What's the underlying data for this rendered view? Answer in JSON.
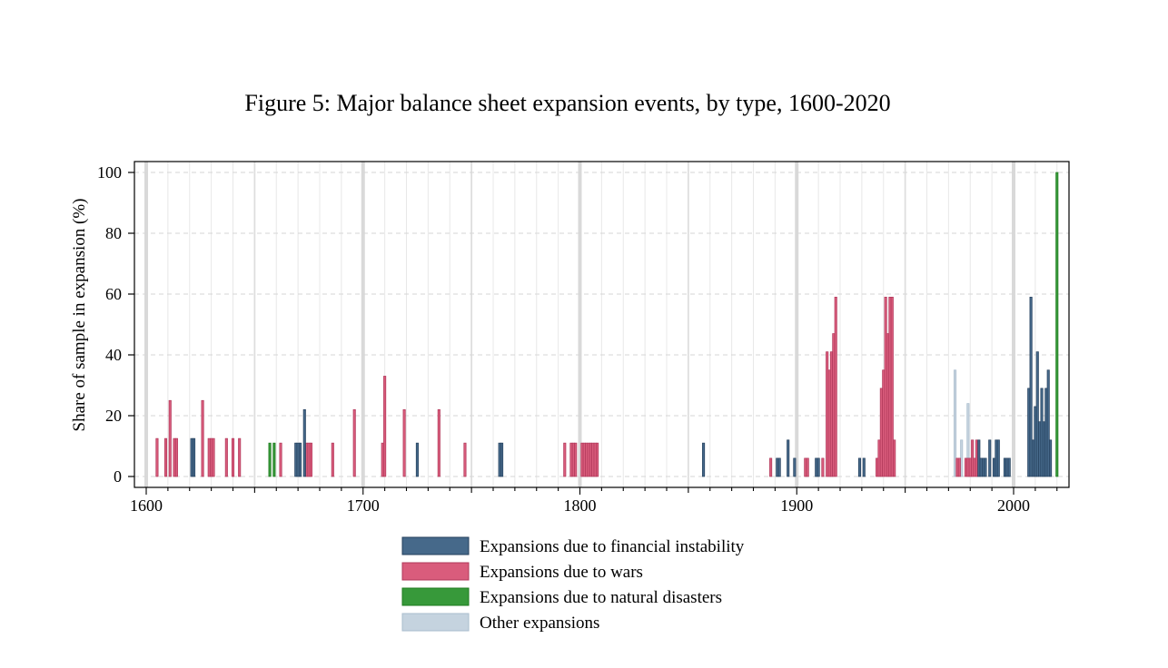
{
  "chart_data": {
    "type": "bar",
    "title": "Figure 5: Major balance sheet expansion events, by type, 1600-2020",
    "xlabel": "",
    "ylabel": "Share of sample in expansion (%)",
    "xlim": [
      1600,
      2025
    ],
    "ylim": [
      0,
      100
    ],
    "xticks": [
      1600,
      1700,
      1800,
      1900,
      2000
    ],
    "yticks": [
      0,
      20,
      40,
      60,
      80,
      100
    ],
    "grid": true,
    "legend_position": "bottom",
    "series": [
      {
        "name": "Expansions due to financial instability",
        "color": "#46698a",
        "edge": "#243f5c",
        "points": [
          [
            1621,
            12.5
          ],
          [
            1622,
            12.5
          ],
          [
            1669,
            11
          ],
          [
            1670,
            11
          ],
          [
            1671,
            11
          ],
          [
            1673,
            22
          ],
          [
            1725,
            11
          ],
          [
            1763,
            11
          ],
          [
            1764,
            11
          ],
          [
            1857,
            11
          ],
          [
            1891,
            6
          ],
          [
            1892,
            6
          ],
          [
            1896,
            12
          ],
          [
            1899,
            6
          ],
          [
            1909,
            6
          ],
          [
            1910,
            6
          ],
          [
            1929,
            6
          ],
          [
            1931,
            6
          ],
          [
            1984,
            12
          ],
          [
            1985,
            6
          ],
          [
            1986,
            6
          ],
          [
            1987,
            6
          ],
          [
            1989,
            12
          ],
          [
            1991,
            6
          ],
          [
            1992,
            12
          ],
          [
            1993,
            12
          ],
          [
            1996,
            6
          ],
          [
            1997,
            6
          ],
          [
            1998,
            6
          ],
          [
            2007,
            29
          ],
          [
            2008,
            59
          ],
          [
            2009,
            12
          ],
          [
            2010,
            23
          ],
          [
            2011,
            41
          ],
          [
            2012,
            18
          ],
          [
            2013,
            29
          ],
          [
            2014,
            18
          ],
          [
            2015,
            29
          ],
          [
            2016,
            35
          ],
          [
            2017,
            12
          ]
        ]
      },
      {
        "name": "Expansions due to wars",
        "color": "#d95c7c",
        "edge": "#b0385a",
        "points": [
          [
            1605,
            12.5
          ],
          [
            1609,
            12.5
          ],
          [
            1611,
            25
          ],
          [
            1613,
            12.5
          ],
          [
            1614,
            12.5
          ],
          [
            1626,
            25
          ],
          [
            1629,
            12.5
          ],
          [
            1630,
            12.5
          ],
          [
            1631,
            12.5
          ],
          [
            1637,
            12.5
          ],
          [
            1640,
            12.5
          ],
          [
            1643,
            12.5
          ],
          [
            1662,
            11
          ],
          [
            1674,
            11
          ],
          [
            1675,
            11
          ],
          [
            1676,
            11
          ],
          [
            1686,
            11
          ],
          [
            1696,
            22
          ],
          [
            1709,
            11
          ],
          [
            1710,
            33
          ],
          [
            1719,
            22
          ],
          [
            1735,
            22
          ],
          [
            1747,
            11
          ],
          [
            1793,
            11
          ],
          [
            1796,
            11
          ],
          [
            1797,
            11
          ],
          [
            1798,
            11
          ],
          [
            1801,
            11
          ],
          [
            1802,
            11
          ],
          [
            1803,
            11
          ],
          [
            1804,
            11
          ],
          [
            1805,
            11
          ],
          [
            1806,
            11
          ],
          [
            1807,
            11
          ],
          [
            1808,
            11
          ],
          [
            1888,
            6
          ],
          [
            1904,
            6
          ],
          [
            1905,
            6
          ],
          [
            1912,
            6
          ],
          [
            1914,
            41
          ],
          [
            1915,
            35
          ],
          [
            1916,
            41
          ],
          [
            1917,
            47
          ],
          [
            1918,
            59
          ],
          [
            1937,
            6
          ],
          [
            1938,
            12
          ],
          [
            1939,
            29
          ],
          [
            1940,
            35
          ],
          [
            1941,
            59
          ],
          [
            1942,
            47
          ],
          [
            1943,
            59
          ],
          [
            1944,
            59
          ],
          [
            1945,
            12
          ],
          [
            1974,
            6
          ],
          [
            1975,
            6
          ],
          [
            1978,
            6
          ],
          [
            1979,
            6
          ],
          [
            1980,
            6
          ],
          [
            1981,
            12
          ],
          [
            1982,
            6
          ],
          [
            1983,
            12
          ]
        ]
      },
      {
        "name": "Expansions due to natural disasters",
        "color": "#37993a",
        "edge": "#1d7a1d",
        "points": [
          [
            1657,
            11
          ],
          [
            1659,
            11
          ],
          [
            2020,
            100
          ]
        ]
      },
      {
        "name": "Other expansions",
        "color": "#c5d3df",
        "edge": "#a9bccd",
        "points": [
          [
            1973,
            35
          ],
          [
            1976,
            12
          ],
          [
            1979,
            24
          ]
        ]
      }
    ]
  }
}
